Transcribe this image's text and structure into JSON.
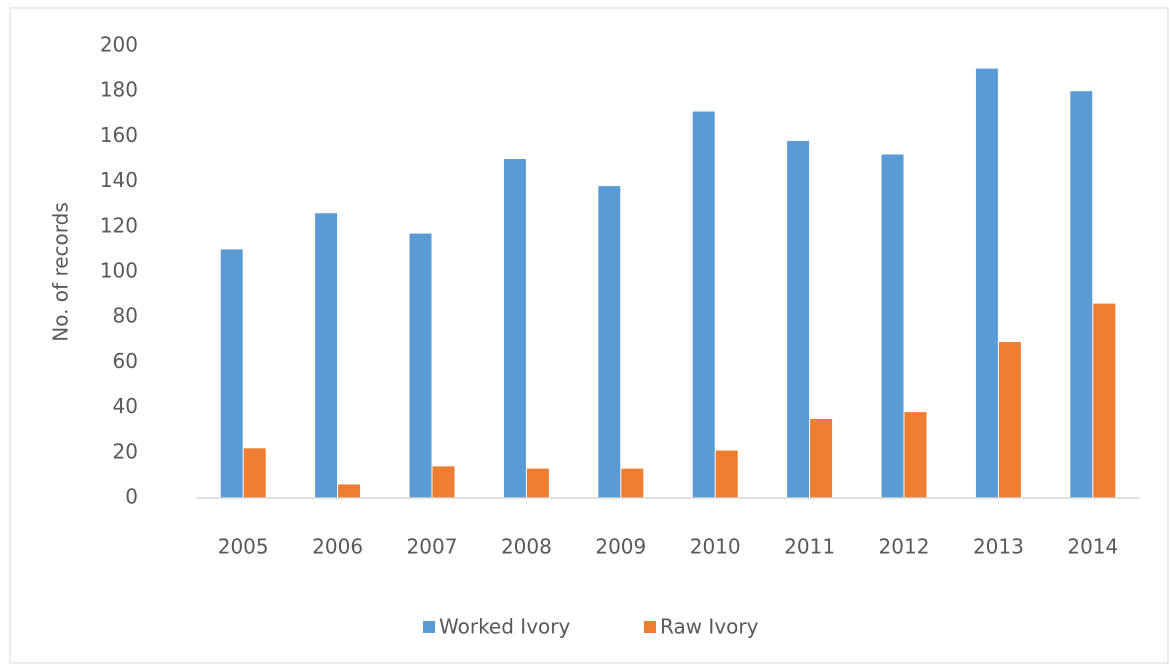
{
  "chart_data": {
    "type": "bar",
    "categories": [
      "2005",
      "2006",
      "2007",
      "2008",
      "2009",
      "2010",
      "2011",
      "2012",
      "2013",
      "2014"
    ],
    "series": [
      {
        "name": "Worked Ivory",
        "color": "#5b9bd5",
        "values": [
          110,
          126,
          117,
          150,
          138,
          171,
          158,
          152,
          190,
          180
        ]
      },
      {
        "name": "Raw Ivory",
        "color": "#ed7d31",
        "values": [
          22,
          6,
          14,
          13,
          13,
          21,
          35,
          38,
          69,
          86
        ]
      }
    ],
    "y_label": "No. of records",
    "ylim": [
      0,
      200
    ],
    "yticks": [
      0,
      20,
      40,
      60,
      80,
      100,
      120,
      140,
      160,
      180,
      200
    ],
    "grid": false,
    "legend": "bottom"
  }
}
